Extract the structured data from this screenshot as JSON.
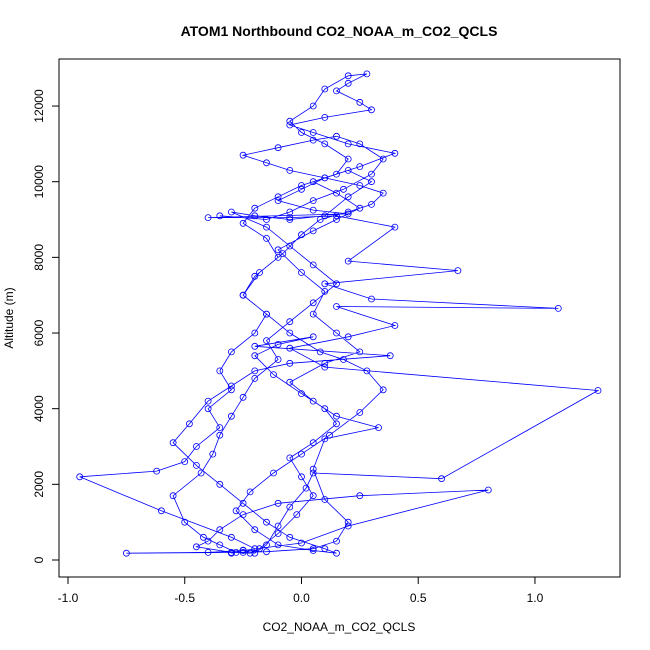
{
  "chart_data": {
    "type": "line",
    "title": "ATOM1 Northbound CO2_NOAA_m_CO2_QCLS",
    "xlabel": "CO2_NOAA_m_CO2_QCLS",
    "ylabel": "Altitude (m)",
    "xlim": [
      -1.0,
      1.3
    ],
    "ylim": [
      0,
      12900
    ],
    "x_ticks": [
      -1.0,
      -0.5,
      0.0,
      0.5,
      1.0
    ],
    "x_tick_labels": [
      "-1.0",
      "-0.5",
      "0.0",
      "0.5",
      "1.0"
    ],
    "y_ticks": [
      0,
      2000,
      4000,
      6000,
      8000,
      10000,
      12000
    ],
    "y_tick_labels": [
      "0",
      "2000",
      "4000",
      "6000",
      "8000",
      "10000",
      "12000"
    ],
    "grid": false,
    "legend": "none",
    "series_color": "#0000ff",
    "series": [
      {
        "name": "ATOM1 Northbound",
        "points": [
          [
            -0.3,
            180
          ],
          [
            -0.25,
            260
          ],
          [
            -0.2,
            180
          ],
          [
            -0.15,
            400
          ],
          [
            -0.1,
            900
          ],
          [
            -0.05,
            1400
          ],
          [
            0.02,
            1900
          ],
          [
            0.05,
            2300
          ],
          [
            0.6,
            2150
          ],
          [
            1.27,
            4480
          ],
          [
            0.1,
            5100
          ],
          [
            -0.05,
            5600
          ],
          [
            0.2,
            5900
          ],
          [
            0.4,
            6200
          ],
          [
            0.15,
            6700
          ],
          [
            1.1,
            6650
          ],
          [
            0.3,
            6900
          ],
          [
            0.1,
            7300
          ],
          [
            0.67,
            7650
          ],
          [
            0.2,
            7900
          ],
          [
            0.4,
            8800
          ],
          [
            0.15,
            9100
          ],
          [
            -0.05,
            9050
          ],
          [
            -0.4,
            9050
          ],
          [
            0.2,
            9150
          ],
          [
            0.05,
            9250
          ],
          [
            -0.1,
            9500
          ],
          [
            0.0,
            9800
          ],
          [
            0.1,
            10100
          ],
          [
            0.25,
            10400
          ],
          [
            0.4,
            10750
          ],
          [
            0.2,
            11000
          ],
          [
            0.05,
            11300
          ],
          [
            -0.05,
            11500
          ],
          [
            0.1,
            11700
          ],
          [
            0.3,
            11900
          ],
          [
            0.25,
            12100
          ],
          [
            0.15,
            12400
          ],
          [
            0.2,
            12600
          ],
          [
            0.28,
            12850
          ],
          [
            0.2,
            12800
          ],
          [
            0.1,
            12450
          ],
          [
            0.05,
            12000
          ],
          [
            -0.05,
            11600
          ],
          [
            0.0,
            11300
          ],
          [
            0.1,
            11000
          ],
          [
            0.2,
            10600
          ],
          [
            0.15,
            10200
          ],
          [
            0.0,
            9900
          ],
          [
            -0.1,
            9600
          ],
          [
            -0.2,
            9300
          ],
          [
            -0.25,
            8900
          ],
          [
            -0.15,
            8500
          ],
          [
            -0.1,
            8000
          ],
          [
            -0.2,
            7500
          ],
          [
            -0.25,
            7000
          ],
          [
            -0.15,
            6500
          ],
          [
            -0.2,
            6000
          ],
          [
            -0.3,
            5500
          ],
          [
            -0.35,
            5000
          ],
          [
            -0.3,
            4500
          ],
          [
            -0.4,
            4000
          ],
          [
            -0.35,
            3500
          ],
          [
            -0.45,
            3000
          ],
          [
            -0.5,
            2600
          ],
          [
            -0.62,
            2350
          ],
          [
            -0.95,
            2200
          ],
          [
            -0.6,
            1300
          ],
          [
            -0.3,
            600
          ],
          [
            -0.2,
            300
          ],
          [
            -0.25,
            200
          ],
          [
            -0.75,
            180
          ],
          [
            -0.4,
            200
          ],
          [
            -0.25,
            250
          ],
          [
            0.0,
            450
          ],
          [
            0.2,
            900
          ],
          [
            0.8,
            1850
          ],
          [
            0.25,
            1700
          ],
          [
            -0.1,
            1500
          ],
          [
            -0.25,
            1200
          ],
          [
            -0.35,
            800
          ],
          [
            -0.4,
            500
          ],
          [
            -0.45,
            350
          ],
          [
            -0.3,
            200
          ],
          [
            -0.15,
            220
          ],
          [
            0.05,
            300
          ],
          [
            0.15,
            500
          ],
          [
            0.2,
            1000
          ],
          [
            0.1,
            1600
          ],
          [
            0.05,
            2400
          ],
          [
            0.1,
            3200
          ],
          [
            0.33,
            3500
          ],
          [
            0.15,
            3800
          ],
          [
            0.05,
            4200
          ],
          [
            -0.05,
            4700
          ],
          [
            0.1,
            5200
          ],
          [
            0.25,
            5500
          ],
          [
            0.15,
            6000
          ],
          [
            0.05,
            6500
          ],
          [
            0.1,
            7100
          ],
          [
            0.0,
            7600
          ],
          [
            -0.1,
            8200
          ],
          [
            0.05,
            8700
          ],
          [
            0.15,
            9000
          ],
          [
            0.25,
            9300
          ],
          [
            0.15,
            9700
          ],
          [
            0.05,
            10000
          ],
          [
            0.2,
            10300
          ],
          [
            0.3,
            10000
          ],
          [
            0.2,
            9600
          ],
          [
            0.1,
            9100
          ],
          [
            -0.05,
            9000
          ],
          [
            -0.2,
            9100
          ],
          [
            -0.3,
            9200
          ],
          [
            -0.15,
            8800
          ],
          [
            -0.05,
            8300
          ],
          [
            0.05,
            7800
          ],
          [
            0.15,
            7300
          ],
          [
            0.05,
            6800
          ],
          [
            -0.05,
            6300
          ],
          [
            -0.15,
            5800
          ],
          [
            -0.1,
            5300
          ],
          [
            -0.2,
            4800
          ],
          [
            -0.25,
            4300
          ],
          [
            -0.3,
            3800
          ],
          [
            -0.35,
            3300
          ],
          [
            -0.38,
            2800
          ],
          [
            -0.43,
            2300
          ],
          [
            -0.55,
            1700
          ],
          [
            -0.5,
            1000
          ],
          [
            -0.42,
            600
          ],
          [
            -0.35,
            400
          ],
          [
            -0.28,
            200
          ],
          [
            -0.22,
            180
          ],
          [
            -0.18,
            300
          ],
          [
            -0.1,
            700
          ],
          [
            -0.02,
            1200
          ],
          [
            0.05,
            1700
          ],
          [
            0.0,
            2200
          ],
          [
            -0.05,
            2700
          ],
          [
            0.05,
            3100
          ],
          [
            0.15,
            3600
          ],
          [
            0.1,
            4000
          ],
          [
            0.0,
            4400
          ],
          [
            -0.12,
            4900
          ],
          [
            -0.2,
            5400
          ],
          [
            -0.1,
            5700
          ],
          [
            0.05,
            5900
          ],
          [
            -0.2,
            5650
          ],
          [
            0.38,
            5400
          ],
          [
            -0.05,
            5200
          ],
          [
            -0.2,
            5000
          ],
          [
            -0.3,
            4600
          ],
          [
            -0.4,
            4200
          ],
          [
            -0.48,
            3600
          ],
          [
            -0.55,
            3100
          ],
          [
            -0.45,
            2500
          ],
          [
            -0.35,
            2000
          ],
          [
            -0.25,
            1500
          ],
          [
            -0.15,
            1000
          ],
          [
            -0.05,
            600
          ],
          [
            0.1,
            300
          ],
          [
            0.15,
            180
          ],
          [
            0.05,
            250
          ],
          [
            -0.1,
            400
          ],
          [
            -0.2,
            800
          ],
          [
            -0.28,
            1300
          ],
          [
            -0.22,
            1800
          ],
          [
            -0.12,
            2300
          ],
          [
            0.0,
            2800
          ],
          [
            0.12,
            3300
          ],
          [
            0.25,
            3900
          ],
          [
            0.35,
            4500
          ],
          [
            0.28,
            5000
          ],
          [
            0.18,
            5300
          ],
          [
            0.08,
            5500
          ],
          [
            -0.05,
            6000
          ],
          [
            -0.15,
            6500
          ],
          [
            -0.25,
            7000
          ],
          [
            -0.18,
            7600
          ],
          [
            -0.08,
            8100
          ],
          [
            0.0,
            8600
          ],
          [
            0.08,
            9000
          ],
          [
            0.2,
            9200
          ],
          [
            0.3,
            9400
          ],
          [
            0.35,
            9700
          ],
          [
            0.25,
            9900
          ],
          [
            0.1,
            10100
          ],
          [
            -0.05,
            10300
          ],
          [
            -0.15,
            10500
          ],
          [
            -0.25,
            10700
          ],
          [
            -0.1,
            10900
          ],
          [
            0.05,
            11100
          ],
          [
            0.15,
            11200
          ],
          [
            0.25,
            11000
          ],
          [
            0.35,
            10600
          ],
          [
            0.3,
            10200
          ],
          [
            0.18,
            9800
          ],
          [
            0.05,
            9500
          ],
          [
            -0.05,
            9200
          ],
          [
            -0.15,
            9000
          ],
          [
            -0.35,
            9100
          ]
        ]
      }
    ]
  }
}
